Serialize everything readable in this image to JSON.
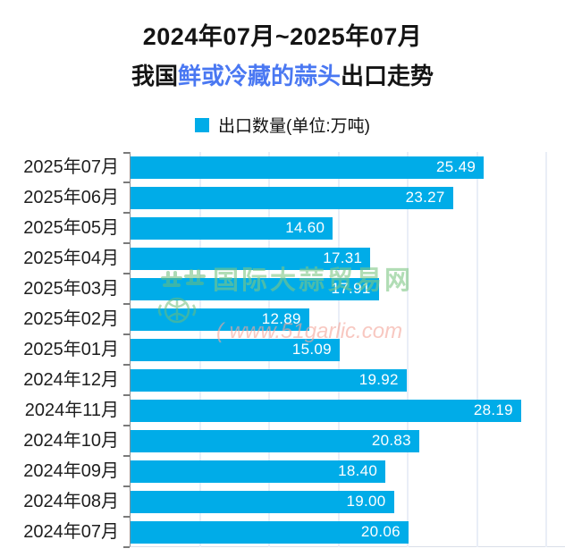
{
  "title": {
    "line1": "2024年07月~2025年07月",
    "line2_prefix": "我国",
    "line2_highlight": "鲜或冷藏的蒜头",
    "line2_suffix": "出口走势",
    "highlight_color": "#4a78f2"
  },
  "legend": {
    "label": "出口数量(单位:万吨)",
    "swatch_color": "#00ace8"
  },
  "watermark": {
    "site_name": "国际大蒜贸易网",
    "url_prefix": "( ",
    "site_url": "www.51garlic.com"
  },
  "chart_data": {
    "type": "bar",
    "orientation": "horizontal",
    "title": "2024年07月~2025年07月 我国鲜或冷藏的蒜头出口走势",
    "series_name": "出口数量",
    "unit": "万吨",
    "categories": [
      "2025年07月",
      "2025年06月",
      "2025年05月",
      "2025年04月",
      "2025年03月",
      "2025年02月",
      "2025年01月",
      "2024年12月",
      "2024年11月",
      "2024年10月",
      "2024年09月",
      "2024年08月",
      "2024年07月"
    ],
    "values": [
      25.49,
      23.27,
      14.6,
      17.31,
      17.91,
      12.89,
      15.09,
      19.92,
      28.19,
      20.83,
      18.4,
      19.0,
      20.06
    ],
    "value_labels": [
      "25.49",
      "23.27",
      "14.60",
      "17.31",
      "17.91",
      "12.89",
      "15.09",
      "19.92",
      "28.19",
      "20.83",
      "18.40",
      "19.00",
      "20.06"
    ],
    "xlim": [
      0,
      31.4
    ],
    "gridlines": [
      5,
      10,
      15,
      20,
      25,
      30
    ],
    "grid": true,
    "legend_position": "top",
    "bar_color": "#00ace8",
    "gridline_color": "#e9eef7",
    "value_label_color": "#ffffff"
  }
}
